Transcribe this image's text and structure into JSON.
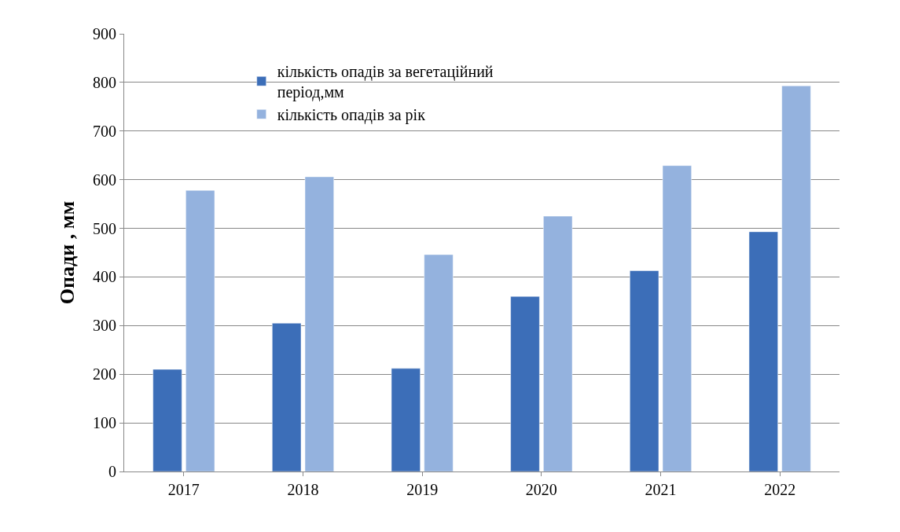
{
  "chart_data": {
    "type": "bar",
    "ylabel": "Опади , мм",
    "categories": [
      "2017",
      "2018",
      "2019",
      "2020",
      "2021",
      "2022"
    ],
    "series": [
      {
        "name": "кількість опадів за вегетаційний період,мм",
        "color": "#3c6eb8",
        "values": [
          210,
          305,
          212,
          360,
          413,
          493
        ]
      },
      {
        "name": "кількість опадів за рік",
        "color": "#94b2de",
        "values": [
          578,
          606,
          446,
          525,
          629,
          793
        ]
      }
    ],
    "ylim": [
      0,
      900
    ],
    "yticks": [
      0,
      100,
      200,
      300,
      400,
      500,
      600,
      700,
      800,
      900
    ],
    "grid": "y",
    "legend": "top left"
  }
}
